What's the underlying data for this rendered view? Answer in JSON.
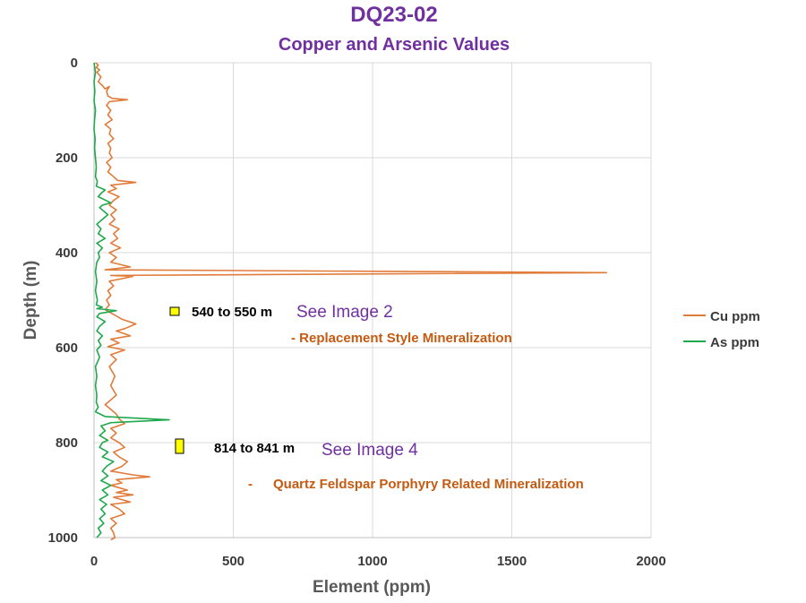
{
  "chart_data": {
    "type": "line",
    "title": "DQ23-02",
    "subtitle": "Copper and Arsenic Values",
    "xlabel": "Element (ppm)",
    "ylabel": "Depth (m)",
    "xlim": [
      0,
      2000
    ],
    "ylim": [
      0,
      1000
    ],
    "y_inverted": true,
    "xticks": [
      "0",
      "500",
      "1000",
      "1500",
      "2000"
    ],
    "yticks": [
      "0",
      "200",
      "400",
      "600",
      "800",
      "1000"
    ],
    "grid": true,
    "legend_position": "right",
    "series": [
      {
        "name": "Cu ppm",
        "color": "#E07B39",
        "points": [
          [
            5,
            0
          ],
          [
            15,
            5
          ],
          [
            8,
            10
          ],
          [
            20,
            15
          ],
          [
            10,
            20
          ],
          [
            25,
            30
          ],
          [
            15,
            40
          ],
          [
            30,
            48
          ],
          [
            40,
            55
          ],
          [
            55,
            50
          ],
          [
            45,
            60
          ],
          [
            50,
            70
          ],
          [
            65,
            75
          ],
          [
            120,
            78
          ],
          [
            55,
            82
          ],
          [
            45,
            90
          ],
          [
            60,
            100
          ],
          [
            50,
            110
          ],
          [
            65,
            120
          ],
          [
            40,
            130
          ],
          [
            60,
            140
          ],
          [
            55,
            150
          ],
          [
            70,
            160
          ],
          [
            50,
            170
          ],
          [
            60,
            180
          ],
          [
            55,
            190
          ],
          [
            65,
            200
          ],
          [
            45,
            210
          ],
          [
            60,
            220
          ],
          [
            50,
            230
          ],
          [
            70,
            240
          ],
          [
            85,
            248
          ],
          [
            150,
            252
          ],
          [
            60,
            258
          ],
          [
            80,
            265
          ],
          [
            50,
            272
          ],
          [
            90,
            282
          ],
          [
            70,
            290
          ],
          [
            55,
            300
          ],
          [
            80,
            310
          ],
          [
            60,
            320
          ],
          [
            75,
            330
          ],
          [
            55,
            340
          ],
          [
            90,
            350
          ],
          [
            70,
            360
          ],
          [
            85,
            370
          ],
          [
            60,
            380
          ],
          [
            95,
            390
          ],
          [
            55,
            400
          ],
          [
            80,
            410
          ],
          [
            60,
            420
          ],
          [
            130,
            430
          ],
          [
            40,
            436
          ],
          [
            1840,
            442
          ],
          [
            60,
            448
          ],
          [
            140,
            450
          ],
          [
            55,
            460
          ],
          [
            70,
            470
          ],
          [
            50,
            480
          ],
          [
            60,
            490
          ],
          [
            45,
            500
          ],
          [
            55,
            510
          ],
          [
            40,
            520
          ],
          [
            70,
            530
          ],
          [
            100,
            540
          ],
          [
            150,
            550
          ],
          [
            110,
            560
          ],
          [
            80,
            565
          ],
          [
            130,
            575
          ],
          [
            60,
            582
          ],
          [
            90,
            590
          ],
          [
            50,
            598
          ],
          [
            110,
            605
          ],
          [
            60,
            615
          ],
          [
            80,
            625
          ],
          [
            55,
            640
          ],
          [
            75,
            660
          ],
          [
            60,
            680
          ],
          [
            80,
            700
          ],
          [
            60,
            710
          ],
          [
            40,
            720
          ],
          [
            60,
            730
          ],
          [
            80,
            740
          ],
          [
            90,
            750
          ],
          [
            110,
            760
          ],
          [
            60,
            770
          ],
          [
            80,
            780
          ],
          [
            60,
            790
          ],
          [
            90,
            800
          ],
          [
            110,
            810
          ],
          [
            70,
            820
          ],
          [
            90,
            830
          ],
          [
            120,
            840
          ],
          [
            100,
            850
          ],
          [
            60,
            860
          ],
          [
            140,
            868
          ],
          [
            200,
            872
          ],
          [
            80,
            878
          ],
          [
            100,
            885
          ],
          [
            60,
            890
          ],
          [
            120,
            900
          ],
          [
            80,
            905
          ],
          [
            140,
            910
          ],
          [
            70,
            915
          ],
          [
            100,
            920
          ],
          [
            130,
            925
          ],
          [
            60,
            930
          ],
          [
            90,
            940
          ],
          [
            110,
            950
          ],
          [
            60,
            960
          ],
          [
            80,
            970
          ],
          [
            60,
            980
          ],
          [
            70,
            990
          ],
          [
            75,
            1000
          ],
          [
            60,
            1005
          ]
        ]
      },
      {
        "name": "As ppm",
        "color": "#1FA84D",
        "points": [
          [
            0,
            0
          ],
          [
            5,
            20
          ],
          [
            0,
            40
          ],
          [
            3,
            60
          ],
          [
            0,
            80
          ],
          [
            5,
            100
          ],
          [
            2,
            120
          ],
          [
            0,
            140
          ],
          [
            4,
            160
          ],
          [
            2,
            180
          ],
          [
            5,
            200
          ],
          [
            8,
            220
          ],
          [
            5,
            240
          ],
          [
            12,
            250
          ],
          [
            8,
            260
          ],
          [
            40,
            268
          ],
          [
            25,
            275
          ],
          [
            15,
            282
          ],
          [
            60,
            295
          ],
          [
            30,
            300
          ],
          [
            20,
            305
          ],
          [
            50,
            320
          ],
          [
            30,
            330
          ],
          [
            10,
            340
          ],
          [
            25,
            350
          ],
          [
            15,
            360
          ],
          [
            40,
            370
          ],
          [
            10,
            380
          ],
          [
            30,
            390
          ],
          [
            15,
            400
          ],
          [
            20,
            410
          ],
          [
            10,
            420
          ],
          [
            5,
            440
          ],
          [
            10,
            460
          ],
          [
            5,
            480
          ],
          [
            12,
            500
          ],
          [
            8,
            510
          ],
          [
            30,
            515
          ],
          [
            10,
            518
          ],
          [
            80,
            522
          ],
          [
            20,
            528
          ],
          [
            10,
            535
          ],
          [
            40,
            545
          ],
          [
            20,
            555
          ],
          [
            10,
            565
          ],
          [
            30,
            575
          ],
          [
            15,
            585
          ],
          [
            25,
            595
          ],
          [
            10,
            605
          ],
          [
            20,
            620
          ],
          [
            5,
            640
          ],
          [
            10,
            660
          ],
          [
            5,
            680
          ],
          [
            10,
            700
          ],
          [
            8,
            715
          ],
          [
            15,
            725
          ],
          [
            5,
            735
          ],
          [
            40,
            745
          ],
          [
            270,
            752
          ],
          [
            60,
            758
          ],
          [
            25,
            765
          ],
          [
            40,
            775
          ],
          [
            20,
            785
          ],
          [
            50,
            795
          ],
          [
            30,
            800
          ],
          [
            20,
            810
          ],
          [
            50,
            820
          ],
          [
            30,
            830
          ],
          [
            70,
            840
          ],
          [
            45,
            850
          ],
          [
            30,
            860
          ],
          [
            50,
            870
          ],
          [
            25,
            880
          ],
          [
            60,
            890
          ],
          [
            30,
            900
          ],
          [
            50,
            910
          ],
          [
            20,
            920
          ],
          [
            45,
            930
          ],
          [
            25,
            940
          ],
          [
            40,
            950
          ],
          [
            20,
            960
          ],
          [
            35,
            970
          ],
          [
            15,
            980
          ],
          [
            25,
            990
          ],
          [
            10,
            1000
          ]
        ]
      }
    ],
    "annotations": [
      {
        "kind": "marker",
        "x": 290,
        "y": 548,
        "depth_span": [
          540,
          550
        ]
      },
      {
        "kind": "marker",
        "x": 310,
        "y": 848,
        "depth_span": [
          814,
          841
        ]
      }
    ]
  },
  "annotations_text": {
    "range1": "540 to 550 m",
    "image1": "See Image 2",
    "desc1": "- Replacement Style Mineralization",
    "range2": "814 to 841 m",
    "image2": "See Image 4",
    "desc2_dash": "-",
    "desc2": "Quartz Feldspar Porphyry Related Mineralization"
  },
  "colors": {
    "title": "#7030A0",
    "image_ref": "#7030A0",
    "desc": "#C55A11",
    "marker_fill": "#FFFF00",
    "grid": "#D9D9D9"
  }
}
